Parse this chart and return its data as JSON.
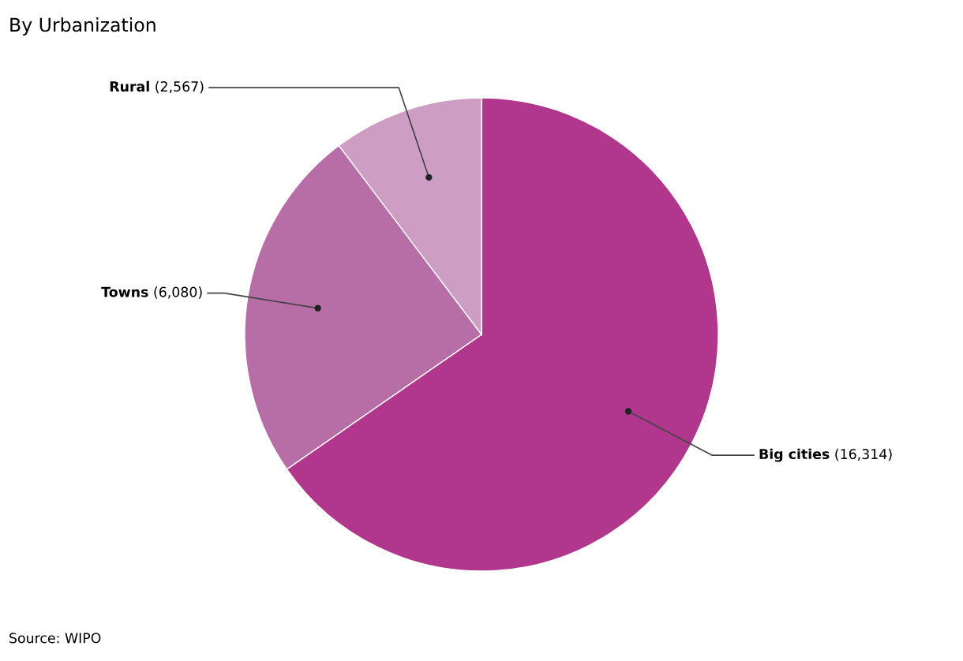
{
  "chart_data": {
    "type": "pie",
    "title": "By Urbanization",
    "categories": [
      "Big cities",
      "Towns",
      "Rural"
    ],
    "values": [
      16314,
      6080,
      2567
    ],
    "value_labels": [
      "(16,314)",
      "(6,080)",
      "(2,567)"
    ],
    "colors": [
      "#b0378c",
      "#b76ea6",
      "#cd9dc3"
    ],
    "annotations": [
      "Source: WIPO"
    ]
  }
}
